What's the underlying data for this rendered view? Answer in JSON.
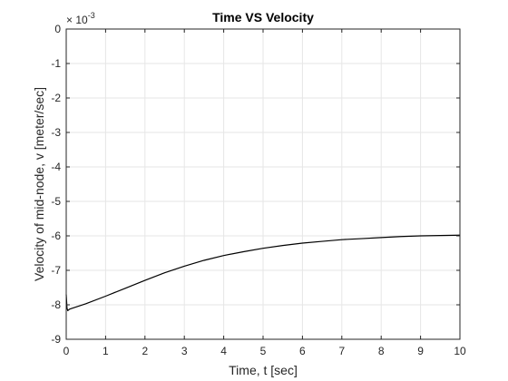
{
  "chart_data": {
    "type": "line",
    "title": "Time VS Velocity",
    "xlabel": "Time, t [sec]",
    "ylabel": "Velocity of mid-node, v [meter/sec]",
    "xlim": [
      0,
      10
    ],
    "ylim": [
      -9,
      0
    ],
    "xticks": [
      0,
      1,
      2,
      3,
      4,
      5,
      6,
      7,
      8,
      9,
      10
    ],
    "yticks": [
      0,
      -1,
      -2,
      -3,
      -4,
      -5,
      -6,
      -7,
      -8,
      -9
    ],
    "y_multiplier": {
      "base": "× 10",
      "exponent": "-3"
    },
    "grid": true,
    "legend": "none",
    "colors": {
      "line": "#000000",
      "grid": "#e6e6e6",
      "axes": "#262626"
    },
    "series": [
      {
        "x": [
          0,
          0.02,
          0.04,
          0.06,
          0.08,
          0.1,
          0.5,
          1,
          1.5,
          2,
          2.5,
          3,
          3.5,
          4,
          4.5,
          5,
          5.5,
          6,
          6.5,
          7,
          7.5,
          8,
          8.5,
          9,
          9.5,
          10
        ],
        "y": [
          -7.7,
          -8.1,
          -8.17,
          -8.15,
          -8.13,
          -8.12,
          -7.97,
          -7.75,
          -7.52,
          -7.29,
          -7.07,
          -6.88,
          -6.71,
          -6.57,
          -6.46,
          -6.36,
          -6.28,
          -6.21,
          -6.16,
          -6.11,
          -6.08,
          -6.05,
          -6.02,
          -6.0,
          -5.99,
          -5.98
        ]
      }
    ]
  }
}
